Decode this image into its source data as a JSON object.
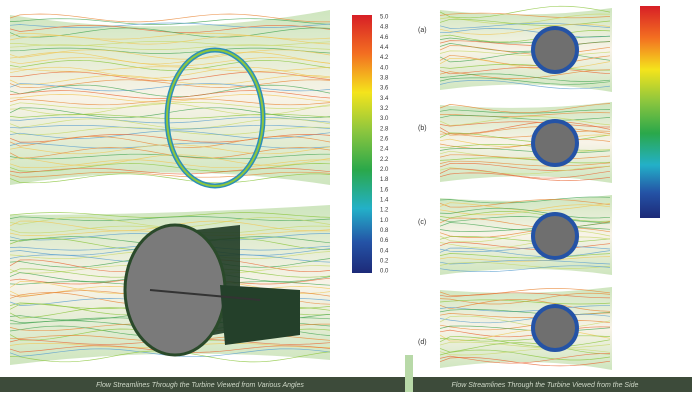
{
  "colorbar": {
    "labels": [
      "5.0",
      "4.8",
      "4.6",
      "4.4",
      "4.2",
      "4.0",
      "3.8",
      "3.6",
      "3.4",
      "3.2",
      "3.0",
      "2.8",
      "2.6",
      "2.4",
      "2.2",
      "2.0",
      "1.8",
      "1.6",
      "1.4",
      "1.2",
      "1.0",
      "0.8",
      "0.6",
      "0.4",
      "0.2",
      "0.0"
    ]
  },
  "panels": {
    "labels": [
      "(a)",
      "(b)",
      "(c)",
      "(d)"
    ]
  },
  "captions": {
    "left": "Flow Streamlines Through the Turbine Viewed from Various Angles",
    "right": "Flow Streamlines Through the Turbine Viewed from the Side"
  }
}
